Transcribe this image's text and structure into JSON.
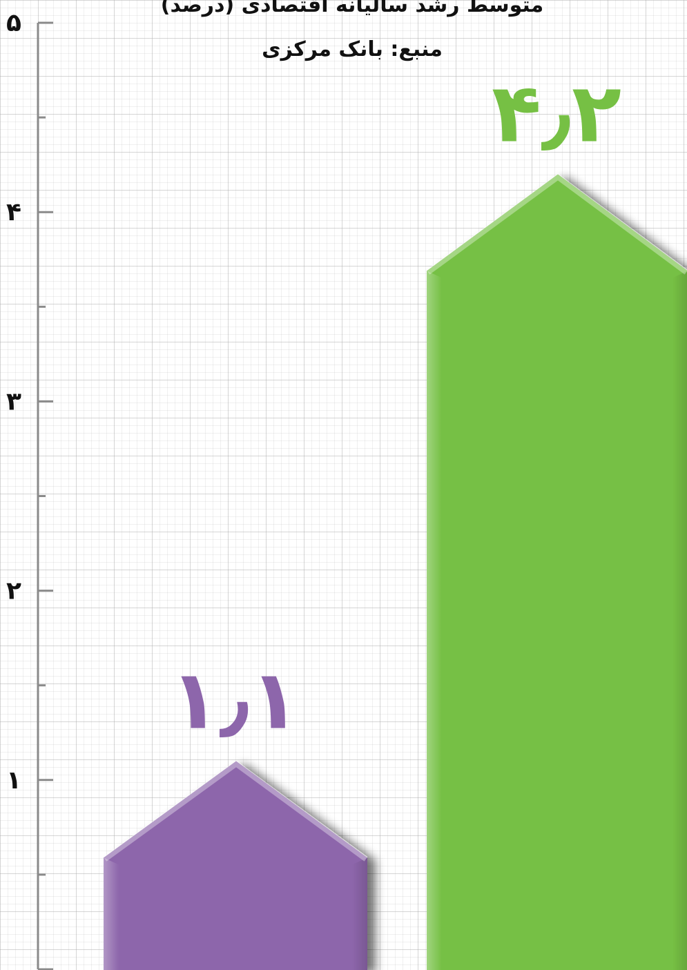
{
  "chart_data": {
    "type": "bar",
    "title": "متوسط رشد سالیانه اقتصادی (درصد)",
    "subtitle": "منبع: بانک مرکزی",
    "xlabel": "",
    "ylabel": "",
    "ylim": [
      0,
      5
    ],
    "y_ticks": [
      1,
      2,
      3,
      4,
      5
    ],
    "y_tick_labels": [
      "۱",
      "۲",
      "۳",
      "۴",
      "۵"
    ],
    "grid": true,
    "values": [
      1.1,
      4.2
    ],
    "value_labels": [
      "۱٫۱",
      "۴٫۲"
    ],
    "colors": [
      "#8d66ab",
      "#76c044"
    ]
  }
}
